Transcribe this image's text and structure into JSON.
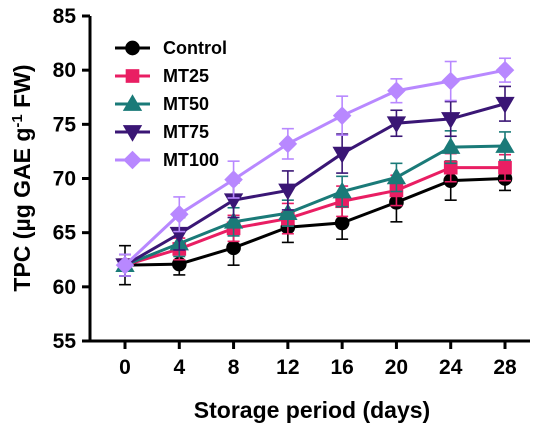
{
  "chart_data": {
    "type": "line",
    "xlabel": "Storage period (days)",
    "ylabel_parts": {
      "prefix": "TPC (µg GAE g",
      "superscript": "-1",
      "suffix": " FW)"
    },
    "x": [
      0,
      4,
      8,
      12,
      16,
      20,
      24,
      28
    ],
    "x_ticks": [
      "0",
      "4",
      "8",
      "12",
      "16",
      "20",
      "24",
      "28"
    ],
    "y_ticks": [
      "55",
      "60",
      "65",
      "70",
      "75",
      "80",
      "85"
    ],
    "y_tick_values": [
      55,
      60,
      65,
      70,
      75,
      80,
      85
    ],
    "ylim": [
      55,
      85
    ],
    "grid": false,
    "legend_position": "top-left",
    "series": [
      {
        "name": "Control",
        "color": "#000000",
        "marker": "circle",
        "values": [
          62.0,
          62.1,
          63.6,
          65.5,
          65.9,
          67.8,
          69.8,
          70.0
        ],
        "errors": [
          1.8,
          1.0,
          1.6,
          1.4,
          1.5,
          1.8,
          1.8,
          1.1
        ]
      },
      {
        "name": "MT25",
        "color": "#e91e63",
        "marker": "square",
        "values": [
          62.0,
          63.5,
          65.4,
          66.3,
          67.9,
          68.9,
          71.0,
          71.0
        ],
        "errors": [
          1.0,
          1.0,
          1.2,
          1.4,
          1.4,
          1.4,
          1.3,
          1.2
        ]
      },
      {
        "name": "MT50",
        "color": "#1a7a78",
        "marker": "triangle-up",
        "values": [
          62.0,
          64.0,
          66.0,
          66.8,
          68.8,
          70.1,
          72.9,
          73.0
        ],
        "errors": [
          1.0,
          1.2,
          1.3,
          1.2,
          1.4,
          1.3,
          1.5,
          1.3
        ]
      },
      {
        "name": "MT75",
        "color": "#3a1675",
        "marker": "triangle-down",
        "values": [
          62.0,
          64.9,
          68.0,
          68.9,
          72.3,
          75.1,
          75.5,
          76.9
        ],
        "errors": [
          1.0,
          1.5,
          1.6,
          1.8,
          1.8,
          1.2,
          1.6,
          1.6
        ]
      },
      {
        "name": "MT100",
        "color": "#b888ff",
        "marker": "diamond",
        "values": [
          62.0,
          66.7,
          69.9,
          73.2,
          75.8,
          78.1,
          79.0,
          80.0
        ],
        "errors": [
          1.0,
          1.6,
          1.7,
          1.4,
          1.8,
          1.1,
          1.8,
          1.1
        ]
      }
    ]
  }
}
